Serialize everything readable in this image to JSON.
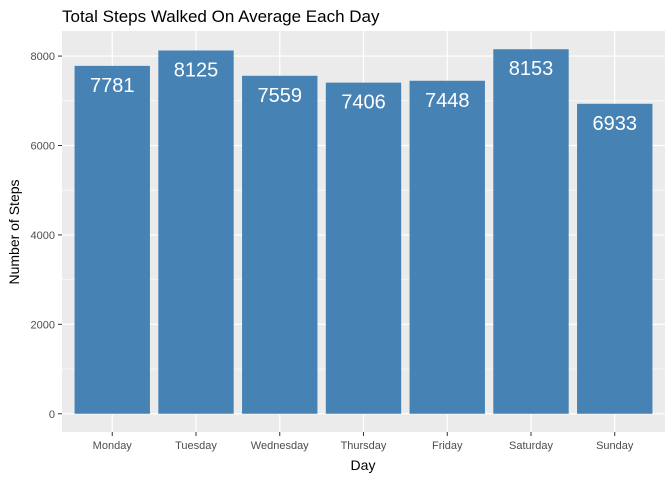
{
  "chart_data": {
    "type": "bar",
    "title": "Total Steps Walked On Average Each Day",
    "xlabel": "Day",
    "ylabel": "Number of Steps",
    "categories": [
      "Monday",
      "Tuesday",
      "Wednesday",
      "Thursday",
      "Friday",
      "Saturday",
      "Sunday"
    ],
    "values": [
      7781,
      8125,
      7559,
      7406,
      7448,
      8153,
      6933
    ],
    "data_labels": [
      "7781",
      "8125",
      "7559",
      "7406",
      "7448",
      "8153",
      "6933"
    ],
    "yticks": [
      0,
      2000,
      4000,
      6000,
      8000
    ],
    "ylim": [
      -408,
      8561
    ],
    "grid": true,
    "legend": "none",
    "colors": {
      "bar": "#4682B4",
      "panel": "#EBEBEB",
      "grid": "#FFFFFF"
    }
  }
}
